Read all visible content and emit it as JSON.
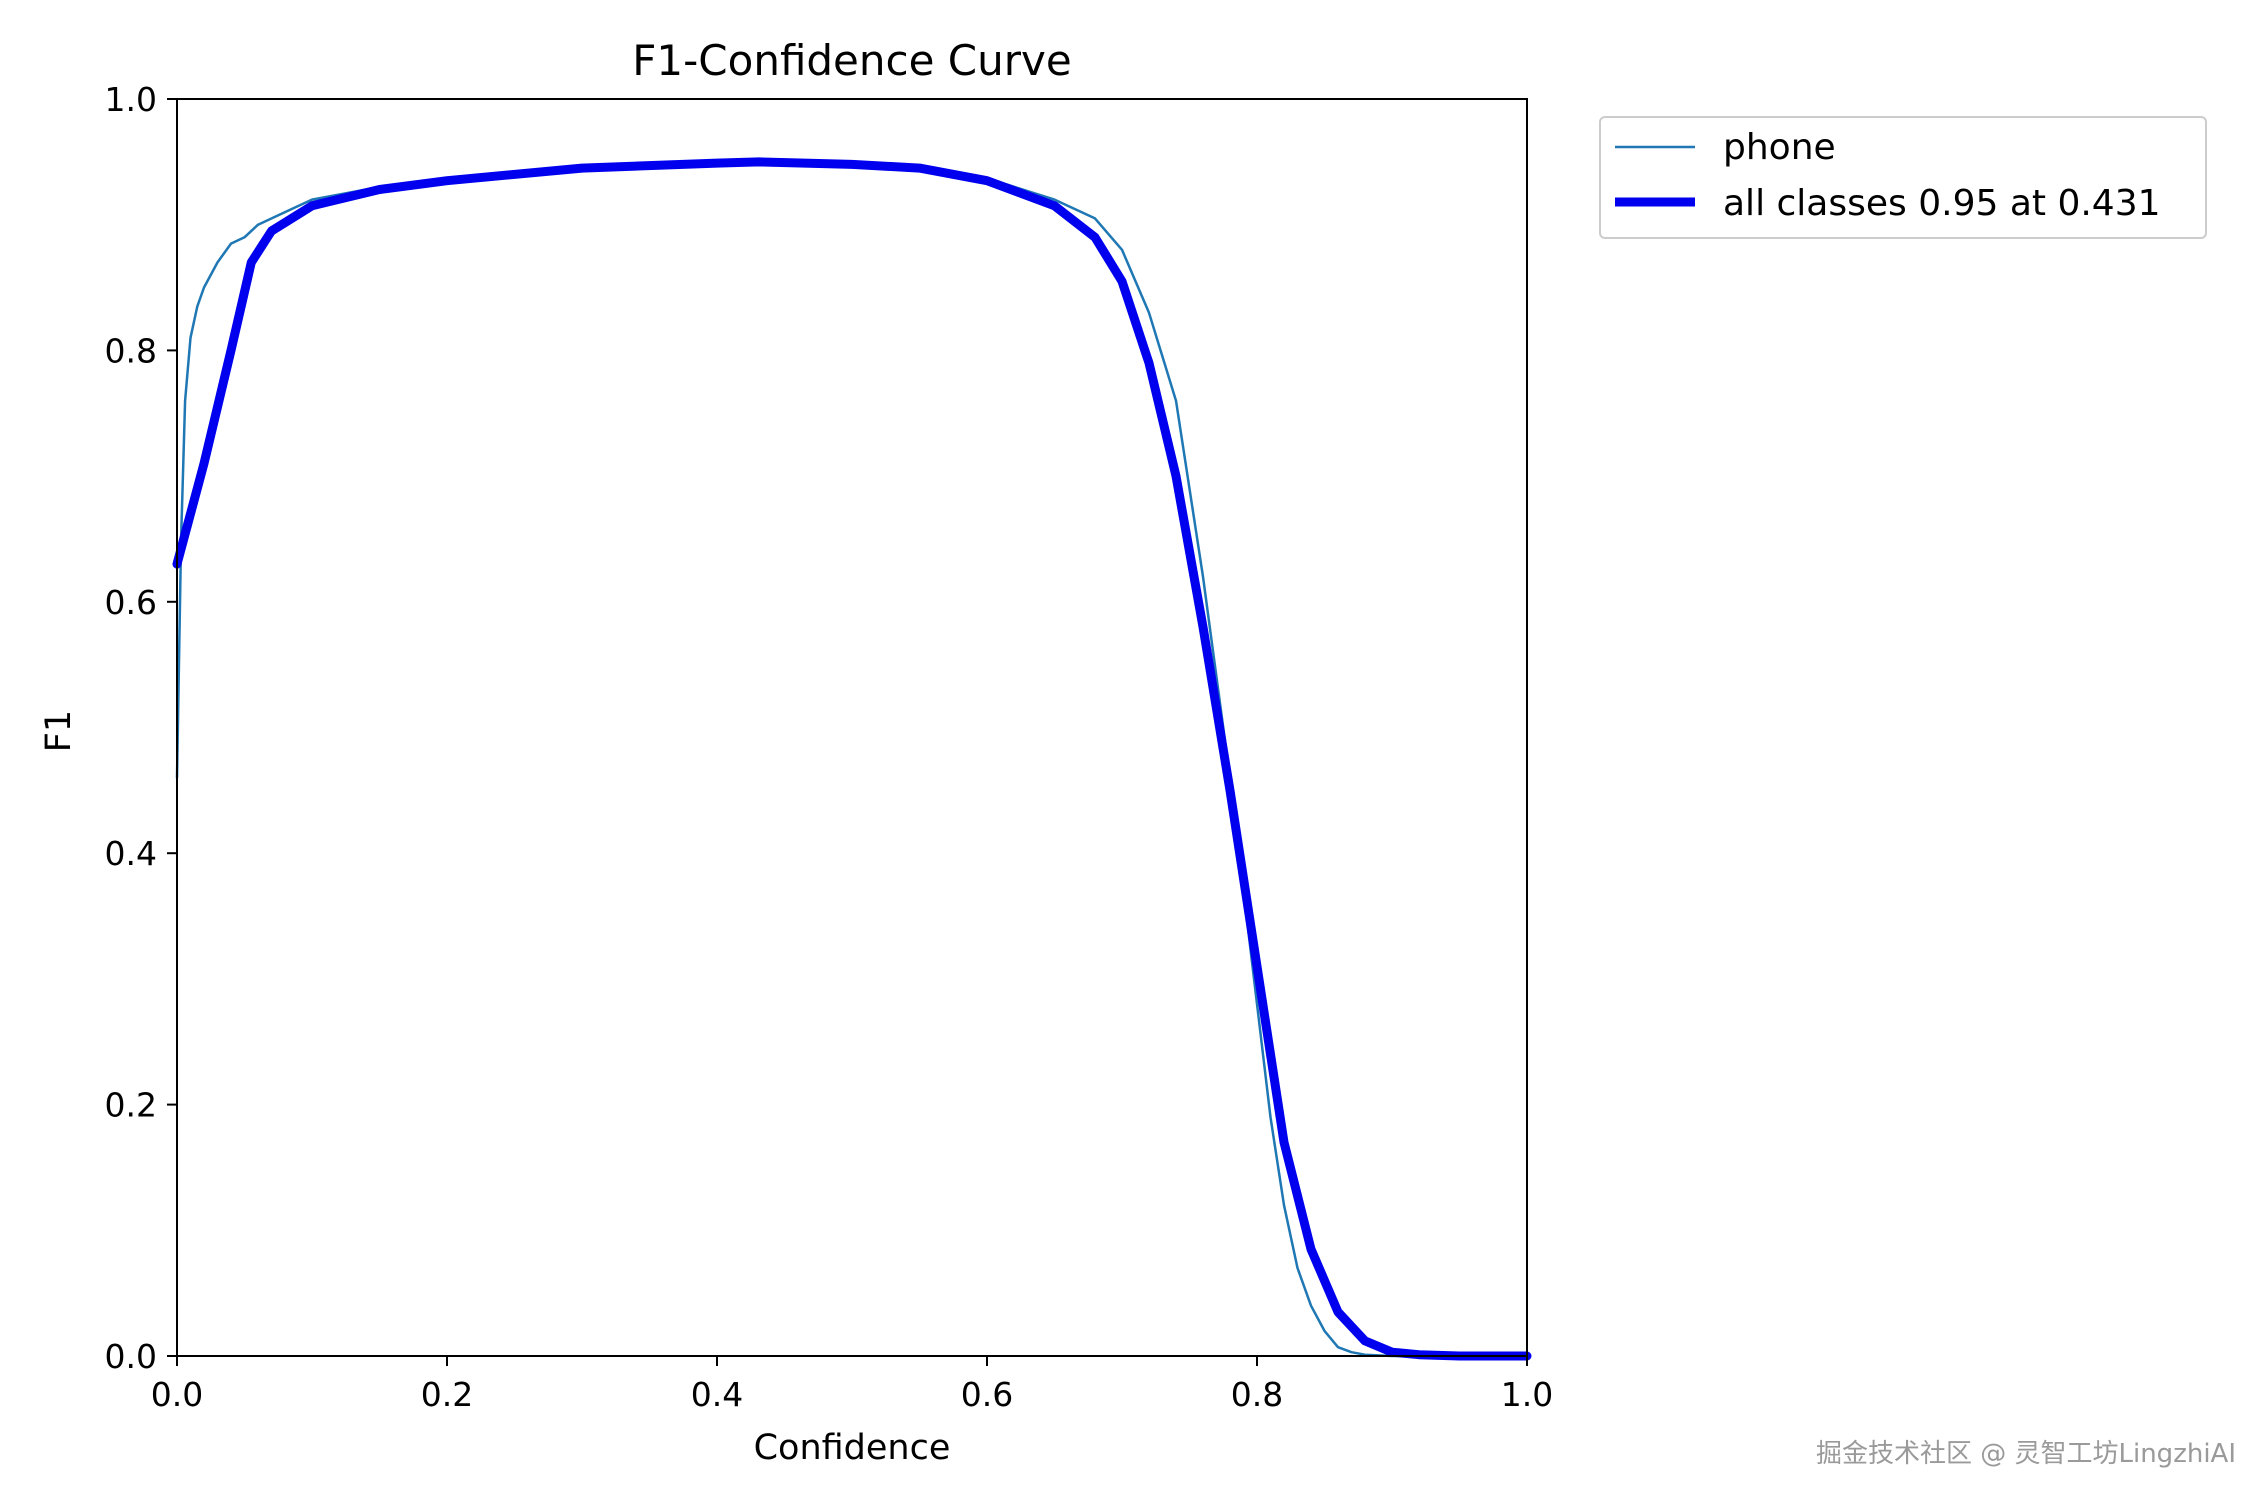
{
  "chart_data": {
    "type": "line",
    "title": "F1-Confidence Curve",
    "xlabel": "Confidence",
    "ylabel": "F1",
    "xlim": [
      0,
      1
    ],
    "ylim": [
      0,
      1
    ],
    "xticks": [
      "0.0",
      "0.2",
      "0.4",
      "0.6",
      "0.8",
      "1.0"
    ],
    "yticks": [
      "0.0",
      "0.2",
      "0.4",
      "0.6",
      "0.8",
      "1.0"
    ],
    "grid": false,
    "legend": "outside-top-right",
    "series": [
      {
        "name": "phone",
        "color": "#1f77b4",
        "x": [
          0.0,
          0.003,
          0.006,
          0.01,
          0.015,
          0.02,
          0.03,
          0.04,
          0.05,
          0.06,
          0.08,
          0.1,
          0.15,
          0.2,
          0.3,
          0.4,
          0.45,
          0.5,
          0.55,
          0.6,
          0.65,
          0.68,
          0.7,
          0.72,
          0.74,
          0.76,
          0.78,
          0.8,
          0.81,
          0.82,
          0.83,
          0.84,
          0.85,
          0.86,
          0.87,
          0.88,
          0.9,
          0.95,
          1.0
        ],
        "y": [
          0.46,
          0.65,
          0.76,
          0.81,
          0.835,
          0.85,
          0.87,
          0.885,
          0.89,
          0.9,
          0.91,
          0.92,
          0.93,
          0.935,
          0.945,
          0.95,
          0.95,
          0.948,
          0.945,
          0.937,
          0.92,
          0.905,
          0.88,
          0.83,
          0.76,
          0.62,
          0.46,
          0.28,
          0.19,
          0.12,
          0.07,
          0.04,
          0.02,
          0.007,
          0.003,
          0.001,
          0.0,
          0.0,
          0.0
        ]
      },
      {
        "name": "all classes 0.95 at 0.431",
        "color": "#0000ee",
        "x": [
          0.0,
          0.02,
          0.04,
          0.055,
          0.07,
          0.1,
          0.15,
          0.2,
          0.3,
          0.4,
          0.431,
          0.5,
          0.55,
          0.6,
          0.65,
          0.68,
          0.7,
          0.72,
          0.74,
          0.76,
          0.78,
          0.8,
          0.82,
          0.84,
          0.86,
          0.88,
          0.9,
          0.92,
          0.95,
          1.0
        ],
        "y": [
          0.63,
          0.71,
          0.8,
          0.87,
          0.895,
          0.915,
          0.928,
          0.935,
          0.945,
          0.949,
          0.95,
          0.948,
          0.945,
          0.935,
          0.915,
          0.89,
          0.855,
          0.79,
          0.7,
          0.58,
          0.45,
          0.31,
          0.17,
          0.085,
          0.035,
          0.012,
          0.003,
          0.001,
          0.0,
          0.0
        ]
      }
    ]
  },
  "watermark": "掘金技术社区 @ 灵智工坊LingzhiAI"
}
